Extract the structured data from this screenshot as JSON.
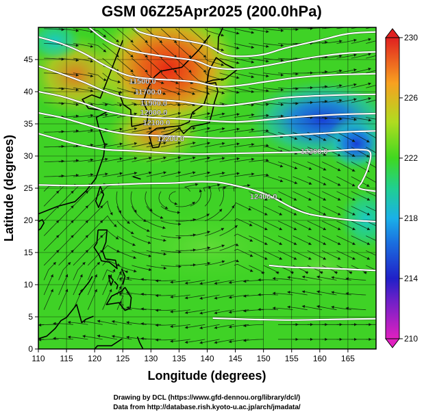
{
  "title": "GSM 06Z25Apr2025 (200.0hPa)",
  "xlabel": "Longitude (degrees)",
  "ylabel": "Latitude  (degrees)",
  "credits": [
    "Drawing by DCL (https://www.gfd-dennou.org/library/dcl/)",
    "Data from http://database.rish.kyoto-u.ac.jp/arch/jmadata/"
  ],
  "chart_data": {
    "type": "heatmap",
    "title": "GSM 06Z25Apr2025 (200.0hPa)",
    "xlabel": "Longitude (degrees)",
    "ylabel": "Latitude  (degrees)",
    "xlim": [
      110,
      170
    ],
    "ylim": [
      0,
      50
    ],
    "x_ticks": [
      110,
      115,
      120,
      125,
      130,
      135,
      140,
      145,
      150,
      155,
      160,
      165
    ],
    "y_ticks": [
      0,
      5,
      10,
      15,
      20,
      25,
      30,
      35,
      40,
      45
    ],
    "grid": true,
    "colorbar": {
      "ticks": [
        210,
        214,
        218,
        222,
        226,
        230
      ],
      "range": [
        210,
        230
      ],
      "colors": [
        "#e020c0",
        "#2020c8",
        "#1ab0e8",
        "#20d080",
        "#40d820",
        "#b0dc20",
        "#f8a020",
        "#e02020"
      ]
    },
    "contour_labels": [
      {
        "text": "11500.0",
        "lon": 128.5,
        "lat": 41.2
      },
      {
        "text": "11700.0",
        "lon": 129.5,
        "lat": 39.6
      },
      {
        "text": "11900.0",
        "lon": 130.5,
        "lat": 37.8
      },
      {
        "text": "12000.0",
        "lon": 130.5,
        "lat": 36.4
      },
      {
        "text": "12100.0",
        "lon": 131.0,
        "lat": 34.8
      },
      {
        "text": "12200.0",
        "lon": 133.5,
        "lat": 32.3
      },
      {
        "text": "12300.0",
        "lon": 159.0,
        "lat": 30.3
      },
      {
        "text": "12400.0",
        "lon": 150.0,
        "lat": 23.3
      }
    ],
    "contours": [
      [
        [
          127,
          50
        ],
        [
          128,
          49.3
        ],
        [
          131,
          48.6
        ],
        [
          134,
          48.2
        ],
        [
          137,
          47.8
        ],
        [
          140,
          47.2
        ],
        [
          143,
          45.8
        ],
        [
          146,
          45.5
        ],
        [
          150,
          45.8
        ],
        [
          154,
          46.8
        ],
        [
          160,
          48
        ],
        [
          165,
          49
        ],
        [
          170,
          49.3
        ]
      ],
      [
        [
          119,
          50
        ],
        [
          122,
          48
        ],
        [
          126,
          46.5
        ],
        [
          130,
          45.8
        ],
        [
          134,
          45.3
        ],
        [
          138,
          44.8
        ],
        [
          141,
          43.8
        ],
        [
          145,
          43.5
        ],
        [
          150,
          44
        ],
        [
          155,
          44.8
        ],
        [
          160,
          45.5
        ],
        [
          165,
          46
        ],
        [
          170,
          46.2
        ]
      ],
      [
        [
          110,
          48.5
        ],
        [
          114,
          47.5
        ],
        [
          118,
          46
        ],
        [
          122,
          44
        ],
        [
          126,
          42.5
        ],
        [
          130,
          42
        ],
        [
          134,
          41.8
        ],
        [
          138,
          41.5
        ],
        [
          142,
          40.8
        ],
        [
          146,
          41
        ],
        [
          150,
          41.5
        ],
        [
          156,
          42.2
        ],
        [
          162,
          42.6
        ],
        [
          170,
          42.8
        ]
      ],
      [
        [
          110,
          44
        ],
        [
          114,
          42.8
        ],
        [
          118,
          41.5
        ],
        [
          122,
          40
        ],
        [
          126,
          39
        ],
        [
          130,
          38.8
        ],
        [
          135,
          38.5
        ],
        [
          139,
          38
        ],
        [
          143,
          37.8
        ],
        [
          148,
          38.3
        ],
        [
          153,
          39
        ],
        [
          158,
          39.3
        ],
        [
          164,
          39.5
        ],
        [
          170,
          39.6
        ]
      ],
      [
        [
          110,
          40
        ],
        [
          114,
          39.3
        ],
        [
          118,
          38.2
        ],
        [
          122,
          37
        ],
        [
          126,
          36.3
        ],
        [
          130,
          36
        ],
        [
          135,
          35.8
        ],
        [
          140,
          35.5
        ],
        [
          145,
          35.3
        ],
        [
          150,
          35.6
        ],
        [
          155,
          36
        ],
        [
          160,
          36.3
        ],
        [
          165,
          36.5
        ],
        [
          170,
          36.6
        ]
      ],
      [
        [
          110,
          36.7
        ],
        [
          114,
          36
        ],
        [
          118,
          35
        ],
        [
          122,
          34
        ],
        [
          126,
          33.4
        ],
        [
          130,
          33.2
        ],
        [
          136,
          33
        ],
        [
          142,
          32.8
        ],
        [
          148,
          32.9
        ],
        [
          154,
          33.2
        ],
        [
          160,
          33.5
        ],
        [
          166,
          33.8
        ],
        [
          170,
          33.9
        ]
      ],
      [
        [
          110,
          33.5
        ],
        [
          114,
          32.5
        ],
        [
          118,
          31.6
        ],
        [
          122,
          31
        ],
        [
          127,
          30.8
        ],
        [
          132,
          30.5
        ],
        [
          138,
          30.3
        ],
        [
          144,
          30.4
        ],
        [
          150,
          30.5
        ],
        [
          156,
          30.6
        ],
        [
          162,
          30.8
        ],
        [
          167,
          31
        ],
        [
          169,
          30.5
        ],
        [
          168.5,
          28
        ],
        [
          167.5,
          26
        ],
        [
          167,
          25
        ],
        [
          170,
          24.5
        ]
      ],
      [
        [
          110,
          25.5
        ],
        [
          116,
          25.4
        ],
        [
          122,
          25.5
        ],
        [
          128,
          25.7
        ],
        [
          134,
          25.8
        ],
        [
          138,
          26
        ],
        [
          142,
          25.9
        ],
        [
          146,
          25.2
        ],
        [
          149,
          24.5
        ],
        [
          152,
          23.4
        ],
        [
          155,
          22
        ],
        [
          158,
          21
        ],
        [
          162,
          20.4
        ],
        [
          166,
          20
        ],
        [
          170,
          19.8
        ]
      ],
      [
        [
          151,
          13
        ],
        [
          155,
          12.7
        ],
        [
          160,
          12.6
        ],
        [
          165,
          12.4
        ],
        [
          170,
          12.2
        ]
      ],
      [
        [
          141,
          4.8
        ],
        [
          148,
          4.6
        ],
        [
          155,
          4.5
        ],
        [
          162,
          4.6
        ],
        [
          170,
          4.7
        ]
      ]
    ],
    "coastlines": [
      [
        [
          125.0,
          48.0
        ],
        [
          121.8,
          40.8
        ],
        [
          121.0,
          39.0
        ],
        [
          119.5,
          39.5
        ],
        [
          117.8,
          38.8
        ],
        [
          118.9,
          37.4
        ],
        [
          122.5,
          37.0
        ],
        [
          120.3,
          36.0
        ],
        [
          120.7,
          34.5
        ],
        [
          121.8,
          31.7
        ],
        [
          121.6,
          30.0
        ],
        [
          120.2,
          26.5
        ],
        [
          118.5,
          24.6
        ],
        [
          116.5,
          22.9
        ],
        [
          113.5,
          22.2
        ],
        [
          110.0,
          21.0
        ]
      ],
      [
        [
          121.0,
          25.3
        ],
        [
          120.2,
          23.0
        ],
        [
          120.7,
          22.0
        ],
        [
          121.6,
          24.0
        ],
        [
          121.0,
          25.3
        ]
      ],
      [
        [
          124.3,
          39.9
        ],
        [
          125.1,
          38.0
        ],
        [
          126.4,
          37.2
        ],
        [
          126.6,
          34.6
        ],
        [
          127.8,
          34.8
        ],
        [
          129.3,
          35.2
        ],
        [
          129.5,
          36.8
        ],
        [
          128.6,
          38.4
        ],
        [
          129.6,
          40.8
        ],
        [
          130.6,
          42.3
        ]
      ],
      [
        [
          130.6,
          42.3
        ],
        [
          131.8,
          43.2
        ],
        [
          135.5,
          43.8
        ],
        [
          138.5,
          46.5
        ],
        [
          140.5,
          48.8
        ]
      ],
      [
        [
          129.6,
          33.4
        ],
        [
          131.0,
          34.3
        ],
        [
          133.0,
          34.5
        ],
        [
          135.2,
          34.7
        ],
        [
          136.8,
          35.3
        ],
        [
          137.4,
          36.8
        ],
        [
          139.4,
          38.0
        ],
        [
          140.0,
          39.5
        ],
        [
          140.0,
          41.2
        ],
        [
          141.5,
          41.4
        ],
        [
          141.9,
          40.0
        ],
        [
          141.3,
          38.4
        ],
        [
          140.9,
          36.8
        ],
        [
          140.4,
          35.2
        ],
        [
          139.1,
          34.9
        ],
        [
          137.2,
          34.6
        ],
        [
          135.8,
          33.5
        ],
        [
          135.1,
          34.3
        ],
        [
          133.4,
          33.5
        ],
        [
          132.0,
          33.2
        ],
        [
          131.4,
          31.4
        ],
        [
          130.3,
          31.3
        ],
        [
          129.6,
          33.4
        ]
      ],
      [
        [
          140.0,
          41.5
        ],
        [
          140.3,
          43.3
        ],
        [
          141.6,
          45.3
        ],
        [
          143.2,
          44.3
        ],
        [
          145.3,
          43.4
        ],
        [
          143.2,
          42.0
        ],
        [
          141.0,
          41.8
        ],
        [
          140.0,
          41.5
        ]
      ],
      [
        [
          141.9,
          46.0
        ],
        [
          142.0,
          48.5
        ],
        [
          142.8,
          50.0
        ]
      ],
      [
        [
          126.8,
          26.8
        ],
        [
          128.2,
          26.4
        ]
      ],
      [
        [
          120.6,
          18.5
        ],
        [
          122.2,
          18.5
        ],
        [
          122.0,
          16.6
        ],
        [
          121.4,
          15.3
        ],
        [
          121.9,
          14.0
        ],
        [
          123.7,
          13.8
        ],
        [
          124.0,
          12.5
        ],
        [
          122.6,
          13.5
        ],
        [
          121.2,
          13.7
        ],
        [
          120.8,
          14.6
        ],
        [
          119.9,
          15.8
        ],
        [
          120.4,
          16.5
        ],
        [
          120.6,
          18.5
        ]
      ],
      [
        [
          122.5,
          11.5
        ],
        [
          123.3,
          10.7
        ],
        [
          122.9,
          9.9
        ],
        [
          122.6,
          10.8
        ],
        [
          122.5,
          11.5
        ]
      ],
      [
        [
          124.8,
          12.5
        ],
        [
          125.4,
          11.3
        ],
        [
          125.0,
          10.0
        ]
      ],
      [
        [
          123.5,
          10.5
        ],
        [
          124.1,
          9.9
        ],
        [
          123.9,
          9.3
        ]
      ],
      [
        [
          125.4,
          9.6
        ],
        [
          126.5,
          8.0
        ],
        [
          126.3,
          6.3
        ],
        [
          125.4,
          6.0
        ],
        [
          124.3,
          7.2
        ],
        [
          122.1,
          6.9
        ],
        [
          123.0,
          8.2
        ],
        [
          124.8,
          9.0
        ],
        [
          125.4,
          9.6
        ]
      ],
      [
        [
          117.2,
          8.4
        ],
        [
          119.0,
          10.4
        ],
        [
          119.6,
          11.3
        ]
      ],
      [
        [
          119.8,
          5.1
        ],
        [
          118.4,
          4.6
        ],
        [
          117.7,
          4.1
        ],
        [
          116.8,
          6.9
        ],
        [
          116.0,
          6.0
        ],
        [
          115.0,
          4.9
        ],
        [
          114.0,
          4.4
        ],
        [
          113.0,
          3.2
        ],
        [
          111.5,
          2.0
        ],
        [
          110.0,
          1.6
        ]
      ],
      [
        [
          124.9,
          1.6
        ],
        [
          123.0,
          0.5
        ],
        [
          120.5,
          0.5
        ],
        [
          120.0,
          0.0
        ]
      ],
      [
        [
          127.6,
          1.9
        ],
        [
          128.0,
          1.0
        ],
        [
          128.6,
          0.0
        ]
      ],
      [
        [
          110.0,
          19.8
        ],
        [
          110.7,
          20.1
        ],
        [
          111.0,
          19.6
        ],
        [
          110.4,
          18.7
        ],
        [
          109.6,
          18.2
        ]
      ]
    ]
  }
}
